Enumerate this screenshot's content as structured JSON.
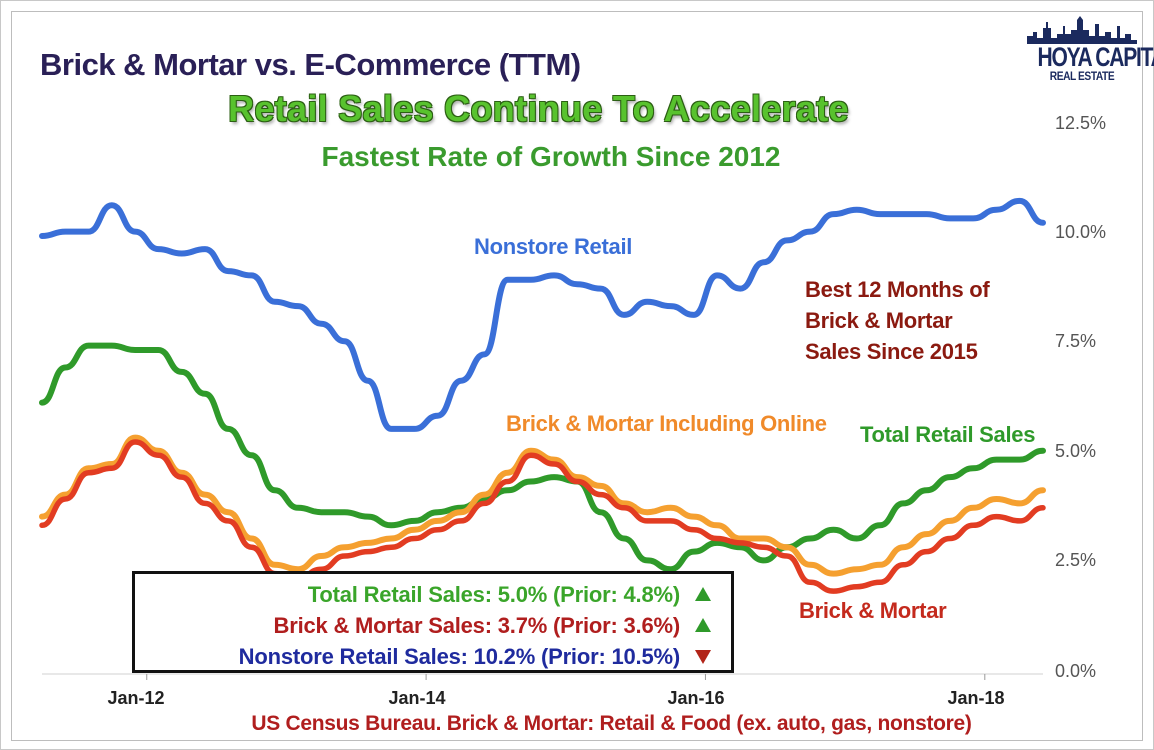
{
  "title": "Brick & Mortar vs. E-Commerce (TTM)",
  "subtitle": "Retail Sales Continue To Accelerate",
  "subtitle2": "Fastest Rate of Growth Since 2012",
  "source": "US Census Bureau. Brick & Mortar: Retail & Food (ex. auto, gas, nonstore)",
  "logo": {
    "name": "HOYA CAPITAL",
    "sub": "REAL ESTATE"
  },
  "annotations": {
    "nonstore": "Nonstore Retail",
    "bm_online": "Brick & Mortar Including Online",
    "total": "Total Retail Sales",
    "bm": "Brick & Mortar",
    "best_line1": "Best 12 Months of",
    "best_line2": "Brick & Mortar",
    "best_line3": "Sales Since 2015"
  },
  "legend": {
    "total": "Total Retail Sales: 5.0% (Prior: 4.8%)",
    "bm": "Brick & Mortar Sales: 3.7% (Prior: 3.6%)",
    "nonstore": "Nonstore Retail Sales: 10.2% (Prior: 10.5%)"
  },
  "colors": {
    "nonstore": "#3a6fd8",
    "total": "#2f9a2a",
    "bm": "#e23c22",
    "bm_online": "#f5a030",
    "legend_total": "#3aa52a",
    "legend_bm": "#b01e1e",
    "legend_nonstore": "#1f2b9e",
    "best": "#8b1a10",
    "up": "#2f9a2a",
    "down": "#b22418"
  },
  "chart_data": {
    "type": "line",
    "y_ticks": [
      "0.0%",
      "2.5%",
      "5.0%",
      "7.5%",
      "10.0%",
      "12.5%"
    ],
    "x_ticks": [
      "Jan-12",
      "Jan-14",
      "Jan-16",
      "Jan-18"
    ],
    "ylim": [
      0,
      12.5
    ],
    "xlim": [
      "2011-04",
      "2018-06"
    ],
    "axis_side": "right",
    "grid": false,
    "series": [
      {
        "name": "Nonstore Retail",
        "key": "nonstore",
        "x": [
          "2011-04",
          "2011-06",
          "2011-08",
          "2011-10",
          "2011-12",
          "2012-02",
          "2012-04",
          "2012-06",
          "2012-08",
          "2012-10",
          "2012-12",
          "2013-02",
          "2013-04",
          "2013-06",
          "2013-08",
          "2013-10",
          "2013-12",
          "2014-02",
          "2014-04",
          "2014-06",
          "2014-08",
          "2014-10",
          "2014-12",
          "2015-02",
          "2015-04",
          "2015-06",
          "2015-08",
          "2015-10",
          "2015-12",
          "2016-02",
          "2016-04",
          "2016-06",
          "2016-08",
          "2016-10",
          "2016-12",
          "2017-02",
          "2017-04",
          "2017-06",
          "2017-08",
          "2017-10",
          "2017-12",
          "2018-02",
          "2018-04",
          "2018-06"
        ],
        "y": [
          9.9,
          10.0,
          10.0,
          10.6,
          10.0,
          9.6,
          9.5,
          9.6,
          9.1,
          9.0,
          8.4,
          8.3,
          7.9,
          7.5,
          6.6,
          5.5,
          5.5,
          5.8,
          6.6,
          7.2,
          8.9,
          8.9,
          9.0,
          8.8,
          8.7,
          8.1,
          8.4,
          8.3,
          8.1,
          9.0,
          8.7,
          9.3,
          9.8,
          10.0,
          10.4,
          10.5,
          10.4,
          10.4,
          10.4,
          10.3,
          10.3,
          10.5,
          10.7,
          10.2
        ]
      },
      {
        "name": "Total Retail Sales",
        "key": "total",
        "x": [
          "2011-04",
          "2011-06",
          "2011-08",
          "2011-10",
          "2011-12",
          "2012-02",
          "2012-04",
          "2012-06",
          "2012-08",
          "2012-10",
          "2012-12",
          "2013-02",
          "2013-04",
          "2013-06",
          "2013-08",
          "2013-10",
          "2013-12",
          "2014-02",
          "2014-04",
          "2014-06",
          "2014-08",
          "2014-10",
          "2014-12",
          "2015-02",
          "2015-04",
          "2015-06",
          "2015-08",
          "2015-10",
          "2015-12",
          "2016-02",
          "2016-04",
          "2016-06",
          "2016-08",
          "2016-10",
          "2016-12",
          "2017-02",
          "2017-04",
          "2017-06",
          "2017-08",
          "2017-10",
          "2017-12",
          "2018-02",
          "2018-04",
          "2018-06"
        ],
        "y": [
          6.1,
          6.9,
          7.4,
          7.4,
          7.3,
          7.3,
          6.8,
          6.3,
          5.5,
          4.9,
          4.1,
          3.7,
          3.6,
          3.6,
          3.5,
          3.3,
          3.4,
          3.6,
          3.7,
          3.9,
          4.1,
          4.3,
          4.4,
          4.3,
          3.6,
          3.0,
          2.5,
          2.3,
          2.7,
          2.9,
          2.8,
          2.5,
          2.8,
          3.0,
          3.2,
          3.0,
          3.3,
          3.8,
          4.1,
          4.4,
          4.6,
          4.8,
          4.8,
          5.0
        ]
      },
      {
        "name": "Brick & Mortar Including Online",
        "key": "bm_online",
        "x": [
          "2011-04",
          "2011-06",
          "2011-08",
          "2011-10",
          "2011-12",
          "2012-02",
          "2012-04",
          "2012-06",
          "2012-08",
          "2012-10",
          "2012-12",
          "2013-02",
          "2013-04",
          "2013-06",
          "2013-08",
          "2013-10",
          "2013-12",
          "2014-02",
          "2014-04",
          "2014-06",
          "2014-08",
          "2014-10",
          "2014-12",
          "2015-02",
          "2015-04",
          "2015-06",
          "2015-08",
          "2015-10",
          "2015-12",
          "2016-02",
          "2016-04",
          "2016-06",
          "2016-08",
          "2016-10",
          "2016-12",
          "2017-02",
          "2017-04",
          "2017-06",
          "2017-08",
          "2017-10",
          "2017-12",
          "2018-02",
          "2018-04",
          "2018-06"
        ],
        "y": [
          3.5,
          4.0,
          4.6,
          4.7,
          5.3,
          5.0,
          4.5,
          4.0,
          3.6,
          3.0,
          2.4,
          2.3,
          2.6,
          2.8,
          2.9,
          3.0,
          3.2,
          3.4,
          3.6,
          4.0,
          4.5,
          5.0,
          4.8,
          4.4,
          4.2,
          3.8,
          3.6,
          3.7,
          3.5,
          3.3,
          3.0,
          3.0,
          2.8,
          2.4,
          2.2,
          2.3,
          2.4,
          2.8,
          3.1,
          3.4,
          3.7,
          3.9,
          3.8,
          4.1
        ]
      },
      {
        "name": "Brick & Mortar",
        "key": "bm",
        "x": [
          "2011-04",
          "2011-06",
          "2011-08",
          "2011-10",
          "2011-12",
          "2012-02",
          "2012-04",
          "2012-06",
          "2012-08",
          "2012-10",
          "2012-12",
          "2013-02",
          "2013-04",
          "2013-06",
          "2013-08",
          "2013-10",
          "2013-12",
          "2014-02",
          "2014-04",
          "2014-06",
          "2014-08",
          "2014-10",
          "2014-12",
          "2015-02",
          "2015-04",
          "2015-06",
          "2015-08",
          "2015-10",
          "2015-12",
          "2016-02",
          "2016-04",
          "2016-06",
          "2016-08",
          "2016-10",
          "2016-12",
          "2017-02",
          "2017-04",
          "2017-06",
          "2017-08",
          "2017-10",
          "2017-12",
          "2018-02",
          "2018-04",
          "2018-06"
        ],
        "y": [
          3.3,
          3.9,
          4.5,
          4.6,
          5.2,
          4.9,
          4.4,
          3.8,
          3.4,
          2.8,
          2.2,
          2.1,
          2.3,
          2.6,
          2.7,
          2.8,
          3.0,
          3.2,
          3.4,
          3.8,
          4.3,
          4.9,
          4.7,
          4.3,
          4.0,
          3.7,
          3.4,
          3.4,
          3.2,
          3.0,
          2.9,
          2.8,
          2.6,
          2.0,
          1.8,
          1.9,
          2.0,
          2.4,
          2.7,
          3.0,
          3.3,
          3.5,
          3.4,
          3.7
        ]
      }
    ]
  }
}
